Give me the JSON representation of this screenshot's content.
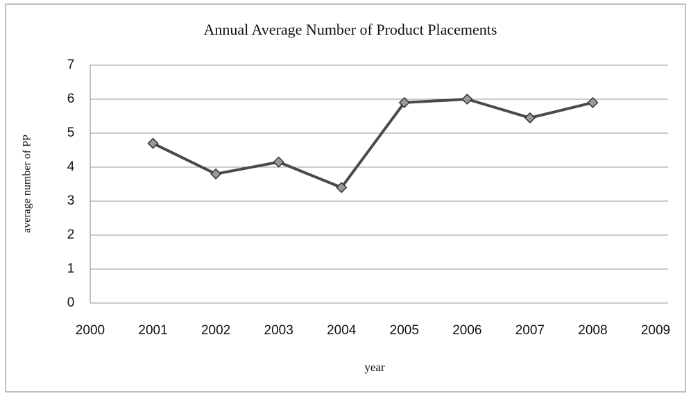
{
  "chart_data": {
    "type": "line",
    "title": "Annual Average Number of Product Placements",
    "x_label": "year",
    "y_label": "average number of PP",
    "x": [
      2001,
      2002,
      2003,
      2004,
      2005,
      2006,
      2007,
      2008
    ],
    "values": [
      4.7,
      3.8,
      4.15,
      3.4,
      5.9,
      6.0,
      5.45,
      5.9
    ],
    "color": "#4a4a4a",
    "marker_color": "#9a9a9a",
    "xlim": [
      2000,
      2009
    ],
    "xticks": [
      2000,
      2001,
      2002,
      2003,
      2004,
      2005,
      2006,
      2007,
      2008,
      2009
    ],
    "ylim": [
      0,
      7
    ],
    "yticks": [
      0,
      1,
      2,
      3,
      4,
      5,
      6,
      7
    ],
    "grid": true
  }
}
